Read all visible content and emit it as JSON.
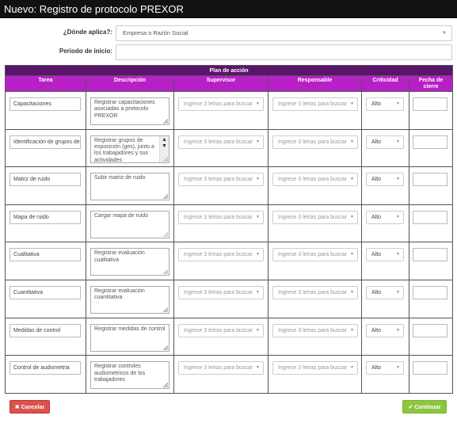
{
  "window": {
    "title": "Nuevo: Registro de protocolo PREXOR"
  },
  "form": {
    "donde_label": "¿Dónde aplica?:",
    "donde_value": "Empresa o Razón Social",
    "periodo_label": "Periodo de inicio:",
    "periodo_value": ""
  },
  "plan": {
    "title": "Plan de acción",
    "headers": [
      "Tarea",
      "Descripción",
      "Supervisor",
      "Responsable",
      "Criticidad",
      "Fecha de cierre"
    ],
    "select_placeholder": "Ingrese 3 letras para buscar",
    "rows": [
      {
        "tarea": "Capacitaciones",
        "descripcion": "Registrar capacitaciones asociadas a protocolo PREXOR",
        "criticidad": "Alto"
      },
      {
        "tarea": "Identificación de grupos de",
        "descripcion": "Registrar grupos de exposición (ges), junto a los trabajadores y sus actividades",
        "criticidad": "Alto"
      },
      {
        "tarea": "Matriz de ruido",
        "descripcion": "Subir matriz de ruido",
        "criticidad": "Alto"
      },
      {
        "tarea": "Mapa de ruido",
        "descripcion": "Cargar mapa de ruido",
        "criticidad": "Alto"
      },
      {
        "tarea": "Cualitativa",
        "descripcion": "Registrar evaluación cualitativa",
        "criticidad": "Alto"
      },
      {
        "tarea": "Cuantitativa",
        "descripcion": "Registrar evaluación cuantitativa",
        "criticidad": "Alto"
      },
      {
        "tarea": "Medidas de control",
        "descripcion": "Registrar medidas de control",
        "criticidad": "Alto"
      },
      {
        "tarea": "Control de audiometria",
        "descripcion": "Registrar controles audiometricos de los trabajadores",
        "criticidad": "Alto"
      }
    ]
  },
  "buttons": {
    "cancel": "Cancelar",
    "continue": "Continuar"
  },
  "icons": {
    "cancel": "close-icon",
    "continue": "check-icon",
    "dropdown": "chevron-down-icon"
  },
  "colors": {
    "plan_header": "#5a146b",
    "column_header": "#b720c6",
    "cancel": "#d9534f",
    "continue": "#8cc63f"
  }
}
